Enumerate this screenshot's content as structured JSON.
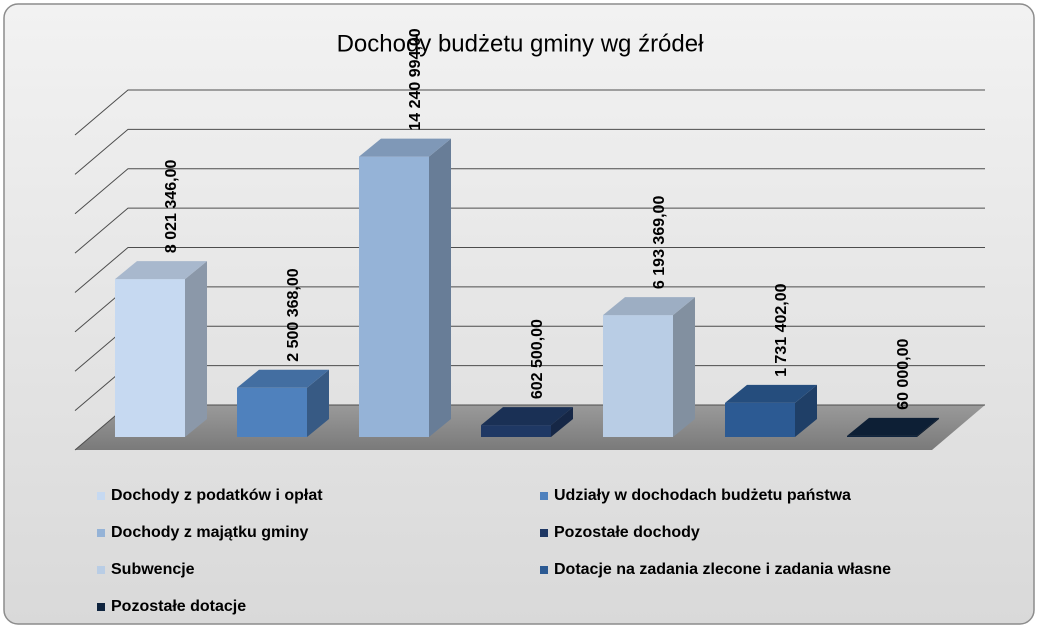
{
  "chart_data": {
    "type": "bar3d",
    "title": "Dochody budżetu gminy wg źródeł",
    "categories": [
      "Dochody z podatków i opłat",
      "Udziały w dochodach budżetu państwa",
      "Dochody z majątku gminy",
      "Pozostałe dochody",
      "Subwencje",
      "Dotacje na zadania zlecone i zadania własne",
      "Pozostałe dotacje"
    ],
    "values": [
      8021346,
      2500368,
      14240994,
      602500,
      6193369,
      1731402,
      60000
    ],
    "value_labels": [
      "8 021 346,00",
      "2 500 368,00",
      "14 240 994,00",
      "602 500,00",
      "6 193 369,00",
      "1 731 402,00",
      "60 000,00"
    ],
    "colors": [
      "#c6d9f1",
      "#4f81bd",
      "#95b3d7",
      "#1f3864",
      "#b9cde5",
      "#2c5a93",
      "#0f243e"
    ],
    "ylim": [
      0,
      16000000
    ],
    "yticks": [
      0,
      2000000,
      4000000,
      6000000,
      8000000,
      10000000,
      12000000,
      14000000,
      16000000
    ],
    "grid": true,
    "legend": "bottom"
  }
}
